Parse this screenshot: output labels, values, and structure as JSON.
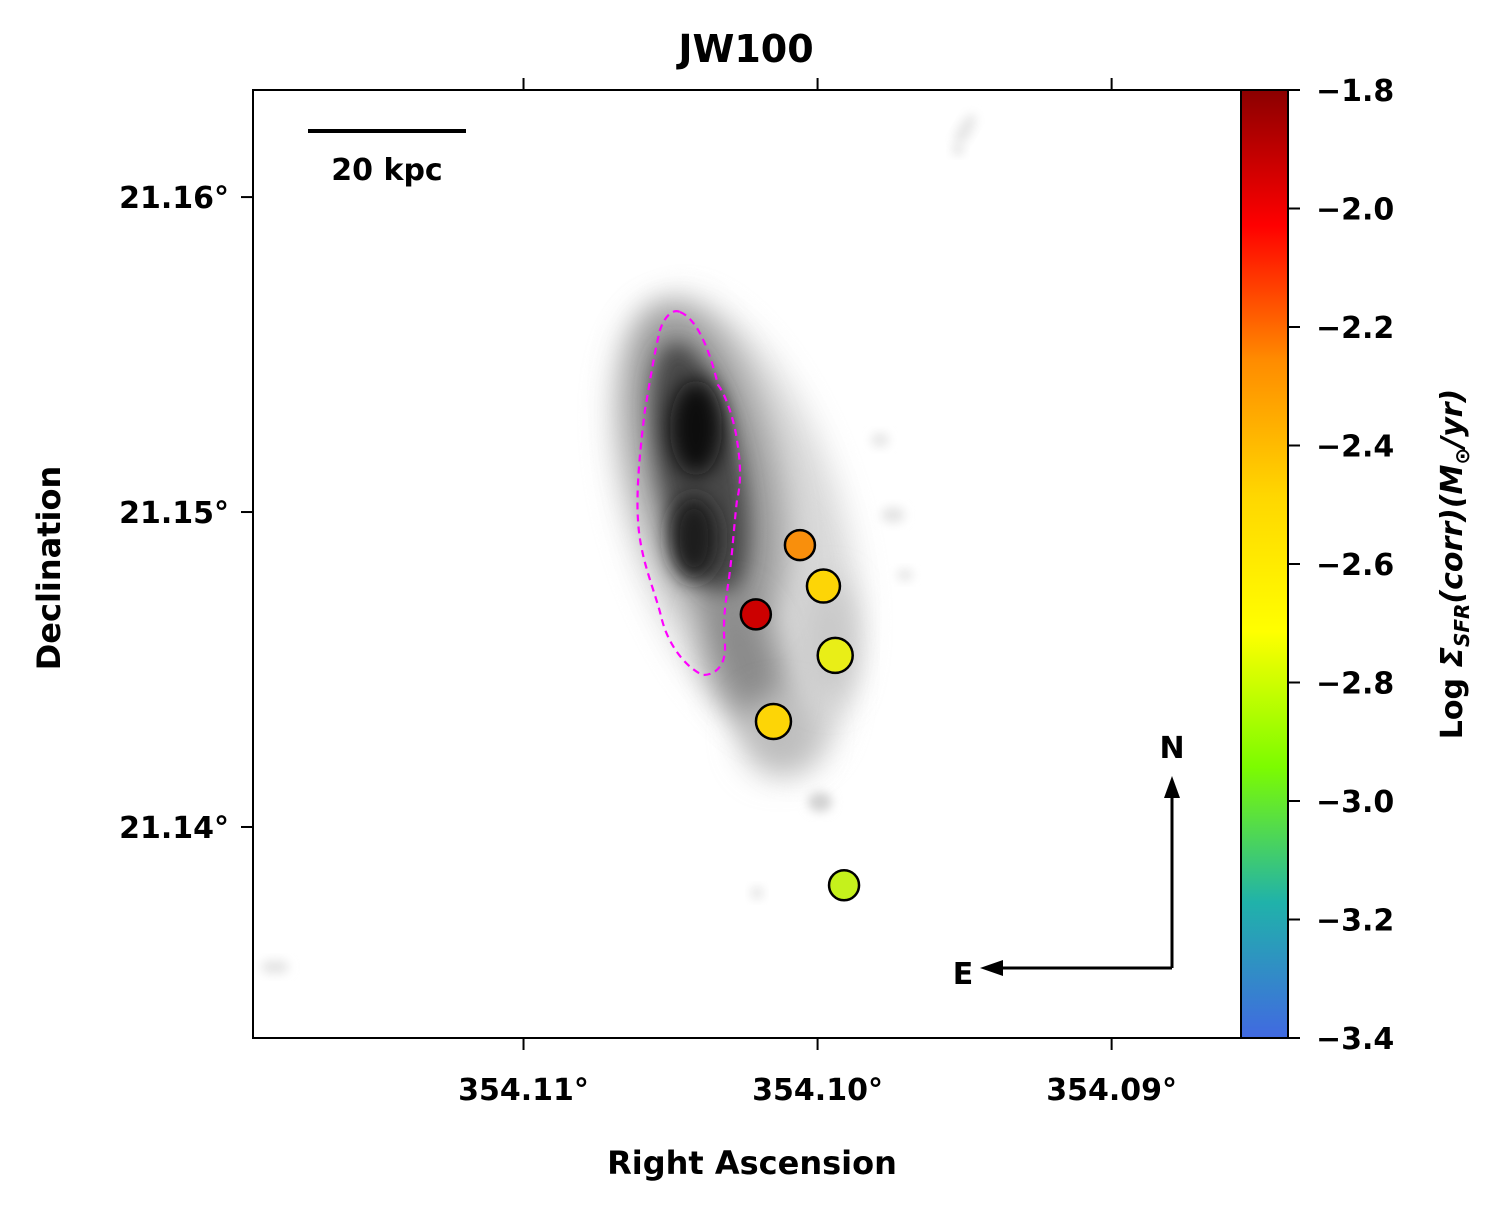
{
  "chart_data": {
    "type": "scatter",
    "title": "JW100",
    "xlabel": "Right Ascension",
    "ylabel": "Declination",
    "x_ticks": [
      {
        "value": 354.11,
        "label": "354.11°"
      },
      {
        "value": 354.1,
        "label": "354.10°"
      },
      {
        "value": 354.09,
        "label": "354.09°"
      }
    ],
    "y_ticks": [
      {
        "value": 21.16,
        "label": "21.16°"
      },
      {
        "value": 21.15,
        "label": "21.15°"
      },
      {
        "value": 21.14,
        "label": "21.14°"
      }
    ],
    "xlim": [
      354.1192,
      354.0856
    ],
    "ylim": [
      21.1333,
      21.1634
    ],
    "colorbar": {
      "label_prefix": "Log ",
      "label_math": "Σ",
      "label_sub": "SFR",
      "label_rest": "(corr)(M",
      "label_sun": "⊙",
      "label_end": "/yr)",
      "range": [
        -3.4,
        -1.8
      ],
      "ticks": [
        {
          "value": -1.8,
          "label": "−1.8"
        },
        {
          "value": -2.0,
          "label": "−2.0"
        },
        {
          "value": -2.2,
          "label": "−2.2"
        },
        {
          "value": -2.4,
          "label": "−2.4"
        },
        {
          "value": -2.6,
          "label": "−2.6"
        },
        {
          "value": -2.8,
          "label": "−2.8"
        },
        {
          "value": -3.0,
          "label": "−3.0"
        },
        {
          "value": -3.2,
          "label": "−3.2"
        },
        {
          "value": -3.4,
          "label": "−3.4"
        }
      ],
      "colors": [
        "#4169e1",
        "#20b2aa",
        "#7cfc00",
        "#ffff00",
        "#ffd700",
        "#ff8c00",
        "#ff0000",
        "#8b0000"
      ]
    },
    "points": [
      {
        "ra": 354.1006,
        "dec": 21.14895,
        "log_sfr": -2.35,
        "color": "#f98f0c",
        "size": "small"
      },
      {
        "ra": 354.0998,
        "dec": 21.14765,
        "log_sfr": -2.55,
        "color": "#fdd506",
        "size": "medium"
      },
      {
        "ra": 354.1021,
        "dec": 21.14675,
        "log_sfr": -1.98,
        "color": "#cc0000",
        "size": "small"
      },
      {
        "ra": 354.0994,
        "dec": 21.14545,
        "log_sfr": -2.72,
        "color": "#e9ee17",
        "size": "large"
      },
      {
        "ra": 354.1015,
        "dec": 21.14335,
        "log_sfr": -2.55,
        "color": "#fdd506",
        "size": "large"
      },
      {
        "ra": 354.0991,
        "dec": 21.13815,
        "log_sfr": -2.82,
        "color": "#c5f11c",
        "size": "small"
      }
    ],
    "scalebar_label": "20 kpc",
    "compass": {
      "north": "N",
      "east": "E"
    },
    "contour_color": "#ff00ff"
  }
}
